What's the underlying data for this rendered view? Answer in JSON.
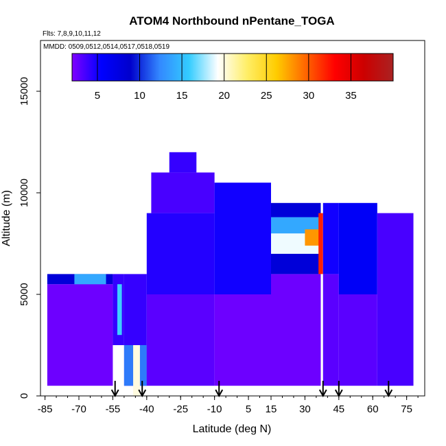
{
  "chart_data": {
    "type": "heatmap",
    "title": "ATOM4 Northbound nPentane_TOGA",
    "subtitle_flights": "Flts: 7,8,9,10,11,12",
    "subtitle_dates": "MMDD: 0509,0512,0514,0517,0518,0519",
    "xlabel": "Latitude (deg N)",
    "ylabel": "Altitude (m)",
    "xlim": [
      -87,
      83
    ],
    "ylim": [
      0,
      17500
    ],
    "x_ticks": [
      -85,
      -70,
      -55,
      -40,
      -25,
      -10,
      5,
      15,
      30,
      45,
      60,
      75
    ],
    "y_ticks": [
      0,
      5000,
      10000,
      15000
    ],
    "colorbar": {
      "range": [
        2,
        40
      ],
      "ticks": [
        5,
        10,
        15,
        20,
        25,
        30,
        35
      ],
      "colors": [
        "#7f00ff",
        "#0000ff",
        "#0000cc",
        "#3388ff",
        "#33ccff",
        "#ffffff",
        "#ffee66",
        "#ffcc00",
        "#ff6600",
        "#ff0000",
        "#cc0000",
        "#aa2222"
      ]
    },
    "flight_markers_latitude": [
      -54,
      -42,
      -8,
      38,
      45,
      67
    ],
    "cells": [
      {
        "lat0": -84,
        "lat1": -55,
        "alt0": 500,
        "alt1": 5500,
        "value": 2.5
      },
      {
        "lat0": -84,
        "lat1": -55,
        "alt0": 5500,
        "alt1": 6000,
        "value": 8
      },
      {
        "lat0": -72,
        "lat1": -58,
        "alt0": 5500,
        "alt1": 6000,
        "value": 14
      },
      {
        "lat0": -55,
        "lat1": -50,
        "alt0": 2500,
        "alt1": 6000,
        "value": 4
      },
      {
        "lat0": -53,
        "lat1": -51,
        "alt0": 3000,
        "alt1": 5500,
        "value": 16
      },
      {
        "lat0": -50,
        "lat1": -40,
        "alt0": 500,
        "alt1": 6000,
        "value": 4
      },
      {
        "lat0": -50,
        "lat1": -40,
        "alt0": 500,
        "alt1": 2500,
        "value": 12
      },
      {
        "lat0": -46,
        "lat1": -43,
        "alt0": 0,
        "alt1": 2500,
        "value": 20
      },
      {
        "lat0": -40,
        "lat1": -10,
        "alt0": 500,
        "alt1": 5000,
        "value": 3
      },
      {
        "lat0": -40,
        "lat1": -10,
        "alt0": 5000,
        "alt1": 9000,
        "value": 4.5
      },
      {
        "lat0": -38,
        "lat1": -10,
        "alt0": 9000,
        "alt1": 11000,
        "value": 3.5
      },
      {
        "lat0": -30,
        "lat1": -18,
        "alt0": 11000,
        "alt1": 12000,
        "value": 4
      },
      {
        "lat0": -10,
        "lat1": 15,
        "alt0": 500,
        "alt1": 5000,
        "value": 2.5
      },
      {
        "lat0": -10,
        "lat1": 15,
        "alt0": 5000,
        "alt1": 10500,
        "value": 5
      },
      {
        "lat0": 15,
        "lat1": 37,
        "alt0": 500,
        "alt1": 6000,
        "value": 2.5
      },
      {
        "lat0": 15,
        "lat1": 37,
        "alt0": 6000,
        "alt1": 7000,
        "value": 8
      },
      {
        "lat0": 15,
        "lat1": 37,
        "alt0": 7000,
        "alt1": 8000,
        "value": 19
      },
      {
        "lat0": 15,
        "lat1": 37,
        "alt0": 8000,
        "alt1": 8800,
        "value": 14
      },
      {
        "lat0": 15,
        "lat1": 37,
        "alt0": 8800,
        "alt1": 9500,
        "value": 8
      },
      {
        "lat0": 30,
        "lat1": 37,
        "alt0": 7400,
        "alt1": 8200,
        "value": 28
      },
      {
        "lat0": 36,
        "lat1": 38,
        "alt0": 6000,
        "alt1": 9000,
        "value": 32
      },
      {
        "lat0": 38,
        "lat1": 45,
        "alt0": 500,
        "alt1": 6000,
        "value": 3
      },
      {
        "lat0": 38,
        "lat1": 45,
        "alt0": 6000,
        "alt1": 9500,
        "value": 5
      },
      {
        "lat0": 45,
        "lat1": 62,
        "alt0": 500,
        "alt1": 5000,
        "value": 3
      },
      {
        "lat0": 45,
        "lat1": 62,
        "alt0": 5000,
        "alt1": 9500,
        "value": 6
      },
      {
        "lat0": 62,
        "lat1": 78,
        "alt0": 500,
        "alt1": 9000,
        "value": 3.5
      }
    ]
  }
}
